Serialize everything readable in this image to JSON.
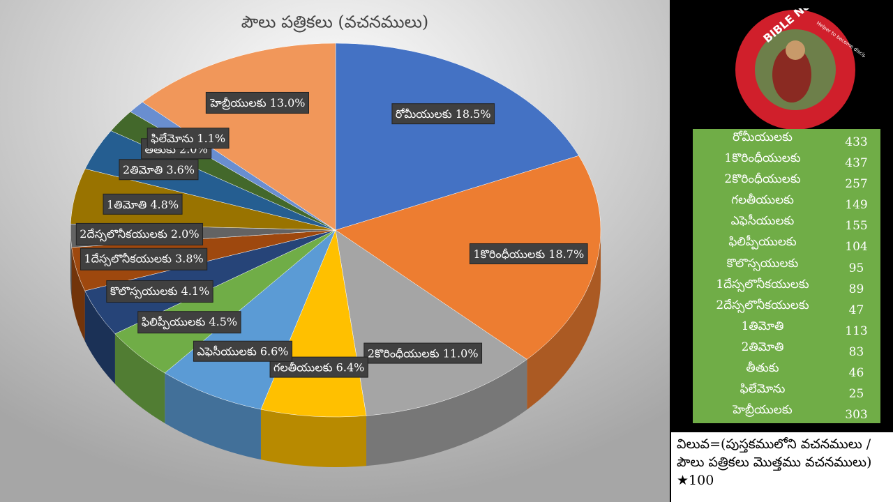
{
  "chart_data": {
    "type": "pie",
    "title": "పౌలు పత్రికలు (వచనములు)",
    "categories": [
      "రోమీయులకు",
      "1కొరింధీయులకు",
      "2కొరింధీయులకు",
      "గలతీయులకు",
      "ఎఫెసీయులకు",
      "ఫిలిప్పీయులకు",
      "కొలొస్సయులకు",
      "1దేస్సలొనీకయులకు",
      "2దేస్సలొనీకయులకు",
      "1తిమోతి",
      "2తిమోతి",
      "తీతుకు",
      "ఫిలేమోను",
      "హెబ్రీయులకు"
    ],
    "values": [
      18.5,
      18.7,
      11.0,
      6.4,
      6.6,
      4.5,
      4.1,
      3.8,
      2.0,
      4.8,
      3.6,
      2.0,
      1.1,
      13.0
    ],
    "value_labels": [
      "18.5%",
      "18.7%",
      "11.0%",
      "6.4%",
      "6.6%",
      "4.5%",
      "4.1%",
      "3.8%",
      "2.0%",
      "4.8%",
      "3.6%",
      "2.0%",
      "1.1%",
      "13.0%"
    ],
    "colors": [
      "#4472c4",
      "#ed7d31",
      "#a5a5a5",
      "#ffc000",
      "#5b9bd5",
      "#70ad47",
      "#264478",
      "#9e480e",
      "#636363",
      "#997300",
      "#255e91",
      "#43682b",
      "#698ed0",
      "#f1975a"
    ]
  },
  "logo": {
    "title": "BIBLE Nestam",
    "tagline": "Helper to become disciple of JESUS CHRIST"
  },
  "table": {
    "rows": [
      [
        "రోమీయులకు",
        433
      ],
      [
        "1కొరింధీయులకు",
        437
      ],
      [
        "2కొరింధీయులకు",
        257
      ],
      [
        "గలతీయులకు",
        149
      ],
      [
        "ఎఫెసీయులకు",
        155
      ],
      [
        "ఫిలిప్పీయులకు",
        104
      ],
      [
        "కొలొస్సయులకు",
        95
      ],
      [
        "1దేస్సలొనీకయులకు",
        89
      ],
      [
        "2దేస్సలొనీకయులకు",
        47
      ],
      [
        "1తిమోతి",
        113
      ],
      [
        "2తిమోతి",
        83
      ],
      [
        "తీతుకు",
        46
      ],
      [
        "ఫిలేమోను",
        25
      ],
      [
        "హెబ్రీయులకు",
        303
      ]
    ]
  },
  "note": "విలువ=(పుస్తకములోని వచనములు / పౌలు పత్రికలు మొత్తము వచనములు) ★100"
}
